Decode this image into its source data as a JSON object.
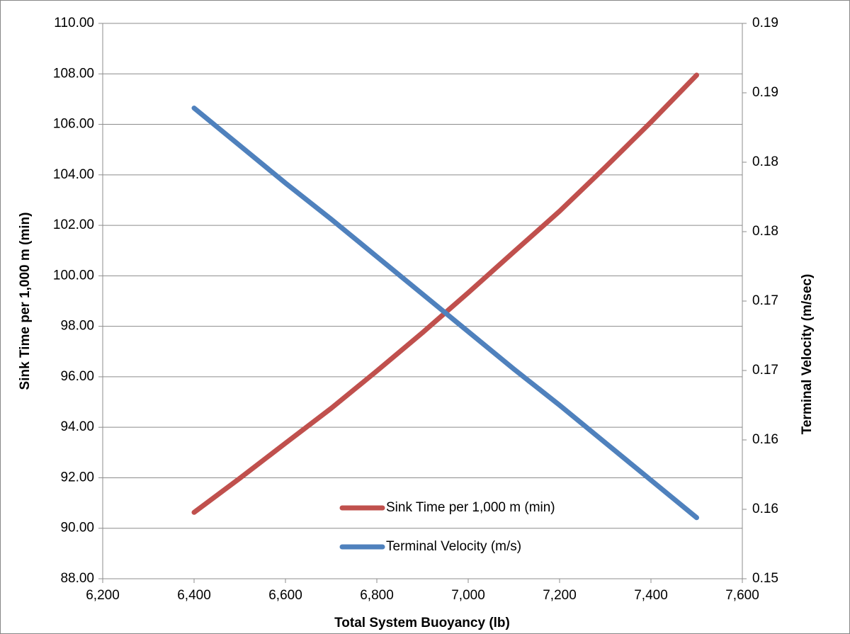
{
  "chart_data": {
    "type": "line",
    "x_label": "Total System Buoyancy (lb)",
    "y_label": "Sink Time per 1,000 m  (min)",
    "y2_label": "Terminal Velocity (m/sec)",
    "x": [
      6400,
      6500,
      6600,
      6700,
      6800,
      6900,
      7000,
      7100,
      7200,
      7300,
      7400,
      7500
    ],
    "series": [
      {
        "name": "Sink Time per 1,000 m (min)",
        "color": "#c0504d",
        "values": [
          90.63,
          91.98,
          93.37,
          94.75,
          96.23,
          97.75,
          99.33,
          100.95,
          102.56,
          104.3,
          106.09,
          107.95
        ]
      },
      {
        "name": "Terminal Velocity (m/s)",
        "color": "#4f81bd",
        "axis": "y2",
        "values": [
          0.1839,
          0.1812,
          0.1785,
          0.1759,
          0.1732,
          0.1705,
          0.1678,
          0.1651,
          0.1625,
          0.1598,
          0.1571,
          0.1544
        ]
      }
    ],
    "xlim": [
      6200,
      7600
    ],
    "xticks": [
      {
        "value": 6200,
        "label": "6,200"
      },
      {
        "value": 6400,
        "label": "6,400"
      },
      {
        "value": 6600,
        "label": "6,600"
      },
      {
        "value": 6800,
        "label": "6,800"
      },
      {
        "value": 7000,
        "label": "7,000"
      },
      {
        "value": 7200,
        "label": "7,200"
      },
      {
        "value": 7400,
        "label": "7,400"
      },
      {
        "value": 7600,
        "label": "7,600"
      }
    ],
    "ylim": [
      88,
      110
    ],
    "yticks": [
      {
        "value": 88,
        "label": "88.00"
      },
      {
        "value": 90,
        "label": "90.00"
      },
      {
        "value": 92,
        "label": "92.00"
      },
      {
        "value": 94,
        "label": "94.00"
      },
      {
        "value": 96,
        "label": "96.00"
      },
      {
        "value": 98,
        "label": "98.00"
      },
      {
        "value": 100,
        "label": "100.00"
      },
      {
        "value": 102,
        "label": "102.00"
      },
      {
        "value": 104,
        "label": "104.00"
      },
      {
        "value": 106,
        "label": "106.00"
      },
      {
        "value": 108,
        "label": "108.00"
      },
      {
        "value": 110,
        "label": "110.00"
      }
    ],
    "y2lim": [
      0.15,
      0.19
    ],
    "y2ticks": [
      {
        "value": 0.15,
        "label": "0.15"
      },
      {
        "value": 0.155,
        "label": "0.16"
      },
      {
        "value": 0.16,
        "label": "0.16"
      },
      {
        "value": 0.165,
        "label": "0.17"
      },
      {
        "value": 0.17,
        "label": "0.17"
      },
      {
        "value": 0.175,
        "label": "0.18"
      },
      {
        "value": 0.18,
        "label": "0.18"
      },
      {
        "value": 0.185,
        "label": "0.19"
      },
      {
        "value": 0.19,
        "label": "0.19"
      }
    ],
    "grid": true,
    "legend": "lower center"
  }
}
